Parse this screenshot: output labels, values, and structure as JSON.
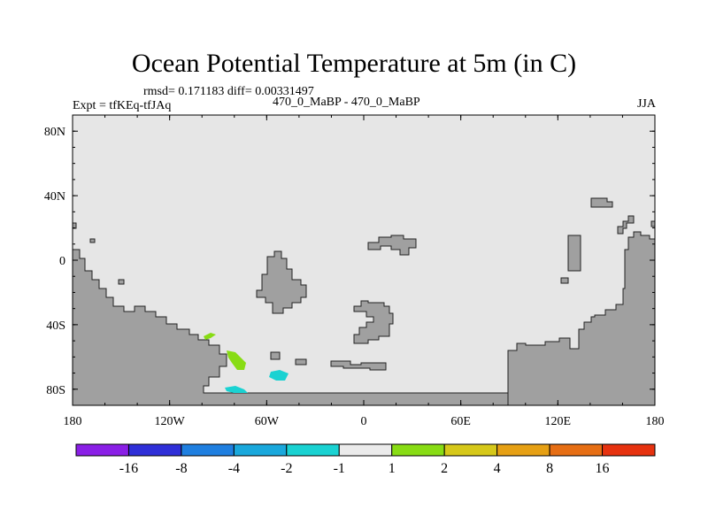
{
  "title": "Ocean Potential Temperature at 5m (in C)",
  "stats_line": "rmsd= 0.171183 diff= 0.00331497",
  "experiment": "Expt = tfKEq-tfJAq",
  "case_line": "470_0_MaBP - 470_0_MaBP",
  "season": "JJA",
  "map": {
    "x_ticks": [
      "180",
      "120W",
      "60W",
      "0",
      "60E",
      "120E",
      "180"
    ],
    "y_ticks": [
      "80N",
      "40N",
      "0",
      "40S",
      "80S"
    ],
    "ocean_color": "#e6e6e6",
    "land_color": "#a0a0a0"
  },
  "colorbar": {
    "colors": [
      "#8a1fe6",
      "#2f2fd8",
      "#1f7fe0",
      "#1aa8dc",
      "#1ad2d2",
      "#ebebeb",
      "#88dc14",
      "#d6c81a",
      "#e6a014",
      "#e66e14",
      "#e6320f"
    ],
    "labels": [
      "-16",
      "-8",
      "-4",
      "-2",
      "-1",
      "1",
      "2",
      "4",
      "8",
      "16"
    ]
  }
}
